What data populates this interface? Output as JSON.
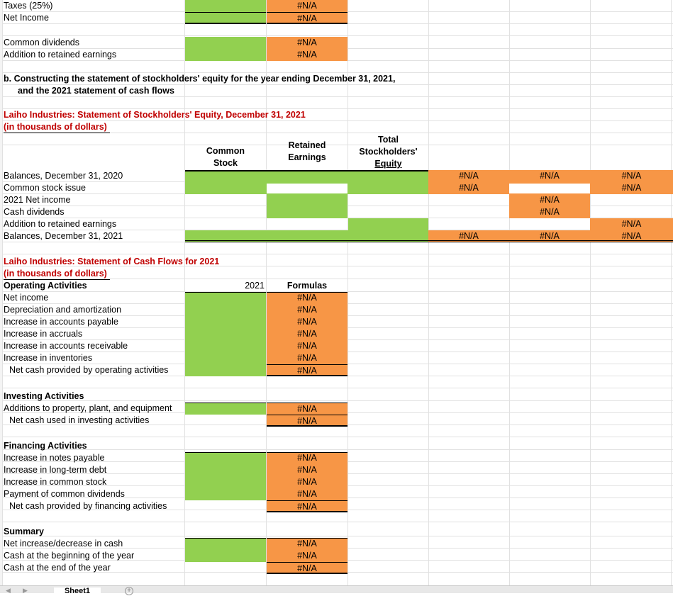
{
  "income": {
    "taxes_label": "Taxes (25%)",
    "net_income_label": "Net Income",
    "common_dividends_label": "Common dividends",
    "addition_label": "Addition to retained earnings"
  },
  "na": "#N/A",
  "section_b": {
    "line1": "b. Constructing the statement of stockholders' equity for the year ending December 31, 2021,",
    "line2": "and the 2021 statement of cash flows"
  },
  "equity": {
    "title": "Laiho Industries: Statement of Stockholders' Equity, December 31, 2021",
    "subtitle": "(in thousands of dollars)",
    "col_common_1": "Common",
    "col_common_2": "Stock",
    "col_retained_1": "Retained",
    "col_retained_2": "Earnings",
    "col_total_1": "Total",
    "col_total_2": "Stockholders'",
    "col_total_3": "Equity",
    "rows": [
      "Balances, December 31, 2020",
      "Common stock issue",
      "2021 Net income",
      "Cash dividends",
      "Addition to retained earnings",
      "Balances, December 31, 2021"
    ]
  },
  "cashflow": {
    "title": "Laiho Industries: Statement of Cash Flows for 2021",
    "subtitle": "(in thousands of dollars)",
    "col_year": "2021",
    "col_formulas": "Formulas",
    "operating_header": "Operating Activities",
    "operating": [
      "Net income",
      "Depreciation and amortization",
      "Increase in accounts payable",
      "Increase in accruals",
      "Increase in accounts receivable",
      "Increase in inventories"
    ],
    "operating_total": "Net cash provided by operating activities",
    "investing_header": "Investing Activities",
    "investing": [
      "Additions to property, plant, and equipment"
    ],
    "investing_total": "Net cash used in investing activities",
    "financing_header": "Financing Activities",
    "financing": [
      "Increase in notes payable",
      "Increase in long-term debt",
      "Increase in common stock",
      "Payment of common dividends"
    ],
    "financing_total": "Net cash provided by financing activities",
    "summary_header": "Summary",
    "summary": [
      "Net increase/decrease in cash",
      "Cash at the beginning of the year",
      "Cash at the end of the year"
    ]
  },
  "sheet_tab": "Sheet1",
  "colors": {
    "green": "#92d050",
    "orange": "#f79646",
    "title_red": "#c00000"
  }
}
